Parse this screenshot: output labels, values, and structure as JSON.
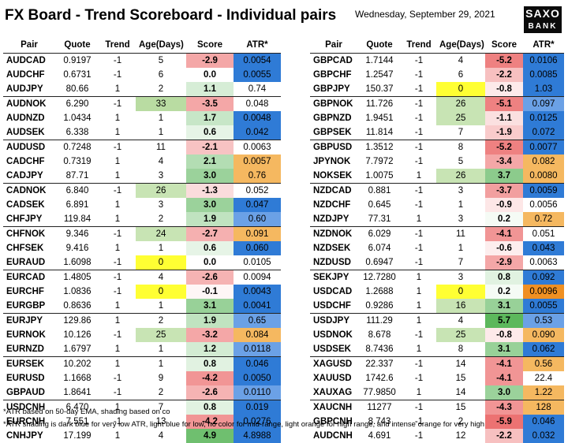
{
  "header": {
    "title": "FX Board - Trend Scoreboard - Individual pairs",
    "date": "Wednesday, September 29, 2021",
    "logo": {
      "line1": "SAXO",
      "line2": "BANK"
    }
  },
  "columns": [
    "Pair",
    "Quote",
    "Trend",
    "Age(Days)",
    "Score",
    "ATR*"
  ],
  "colors": {
    "atr_dark_blue": "#2f7bd6",
    "atr_light_blue": "#6ba1e6",
    "atr_light_orange": "#f5b860",
    "atr_intense_orange": "#f09022",
    "score_red": "#f08a8a",
    "score_light_red": "#f9cfcf",
    "score_green": "#8fcc8f",
    "score_light_green": "#d3ecd3",
    "age_highlight": "#ffff33",
    "age_green": "#b9dca2"
  },
  "left_table": [
    {
      "pair": "AUDCAD",
      "quote": "0.9197",
      "trend": "-1",
      "age": "5",
      "score": "-2.9",
      "atr": "0.0054",
      "sc": "#f4a7a7",
      "ac": "#2f7bd6"
    },
    {
      "pair": "AUDCHF",
      "quote": "0.6731",
      "trend": "-1",
      "age": "6",
      "score": "0.0",
      "atr": "0.0055",
      "sc": "#ffffff",
      "ac": "#2f7bd6"
    },
    {
      "pair": "AUDJPY",
      "quote": "80.66",
      "trend": "1",
      "age": "2",
      "score": "1.1",
      "atr": "0.74",
      "sc": "#d6edd6",
      "ac": "#ffffff",
      "sep": true
    },
    {
      "pair": "AUDNOK",
      "quote": "6.290",
      "trend": "-1",
      "age": "33",
      "score": "-3.5",
      "atr": "0.048",
      "sc": "#f4a7a7",
      "ac": "#ffffff",
      "agc": "#b9dca2"
    },
    {
      "pair": "AUDNZD",
      "quote": "1.0434",
      "trend": "1",
      "age": "1",
      "score": "1.7",
      "atr": "0.0048",
      "sc": "#c7e6c7",
      "ac": "#2f7bd6"
    },
    {
      "pair": "AUDSEK",
      "quote": "6.338",
      "trend": "1",
      "age": "1",
      "score": "0.6",
      "atr": "0.042",
      "sc": "#e6f4e6",
      "ac": "#2f7bd6",
      "sep": true
    },
    {
      "pair": "AUDUSD",
      "quote": "0.7248",
      "trend": "-1",
      "age": "11",
      "score": "-2.1",
      "atr": "0.0063",
      "sc": "#f7c3c3",
      "ac": "#ffffff"
    },
    {
      "pair": "CADCHF",
      "quote": "0.7319",
      "trend": "1",
      "age": "4",
      "score": "2.1",
      "atr": "0.0057",
      "sc": "#b3ddb3",
      "ac": "#f5b860"
    },
    {
      "pair": "CADJPY",
      "quote": "87.71",
      "trend": "1",
      "age": "3",
      "score": "3.0",
      "atr": "0.76",
      "sc": "#9bd29b",
      "ac": "#f5b860",
      "sep": true
    },
    {
      "pair": "CADNOK",
      "quote": "6.840",
      "trend": "-1",
      "age": "26",
      "score": "-1.3",
      "atr": "0.052",
      "sc": "#fadcdc",
      "ac": "#ffffff",
      "agc": "#c8e4b4"
    },
    {
      "pair": "CADSEK",
      "quote": "6.891",
      "trend": "1",
      "age": "3",
      "score": "3.0",
      "atr": "0.047",
      "sc": "#9bd29b",
      "ac": "#2f7bd6"
    },
    {
      "pair": "CHFJPY",
      "quote": "119.84",
      "trend": "1",
      "age": "2",
      "score": "1.9",
      "atr": "0.60",
      "sc": "#c0e3c0",
      "ac": "#6ba1e6",
      "sep": true
    },
    {
      "pair": "CHFNOK",
      "quote": "9.346",
      "trend": "-1",
      "age": "24",
      "score": "-2.7",
      "atr": "0.091",
      "sc": "#f5b0b0",
      "ac": "#f5b860",
      "agc": "#c8e4b4"
    },
    {
      "pair": "CHFSEK",
      "quote": "9.416",
      "trend": "1",
      "age": "1",
      "score": "0.6",
      "atr": "0.060",
      "sc": "#e6f4e6",
      "ac": "#2f7bd6"
    },
    {
      "pair": "EURAUD",
      "quote": "1.6098",
      "trend": "-1",
      "age": "0",
      "score": "0.0",
      "atr": "0.0105",
      "sc": "#ffffff",
      "ac": "#ffffff",
      "agc": "#ffff33",
      "sep": true
    },
    {
      "pair": "EURCAD",
      "quote": "1.4805",
      "trend": "-1",
      "age": "4",
      "score": "-2.6",
      "atr": "0.0094",
      "sc": "#f5b3b3",
      "ac": "#ffffff"
    },
    {
      "pair": "EURCHF",
      "quote": "1.0836",
      "trend": "-1",
      "age": "0",
      "score": "-0.1",
      "atr": "0.0043",
      "sc": "#fef6f6",
      "ac": "#2f7bd6",
      "agc": "#ffff33"
    },
    {
      "pair": "EURGBP",
      "quote": "0.8636",
      "trend": "1",
      "age": "1",
      "score": "3.1",
      "atr": "0.0041",
      "sc": "#98d198",
      "ac": "#2f7bd6",
      "sep": true
    },
    {
      "pair": "EURJPY",
      "quote": "129.86",
      "trend": "1",
      "age": "2",
      "score": "1.9",
      "atr": "0.65",
      "sc": "#c0e3c0",
      "ac": "#6ba1e6"
    },
    {
      "pair": "EURNOK",
      "quote": "10.126",
      "trend": "-1",
      "age": "25",
      "score": "-3.2",
      "atr": "0.084",
      "sc": "#f4a7a7",
      "ac": "#f5b860",
      "agc": "#c8e4b4"
    },
    {
      "pair": "EURNZD",
      "quote": "1.6797",
      "trend": "1",
      "age": "1",
      "score": "1.2",
      "atr": "0.0118",
      "sc": "#d3ecd3",
      "ac": "#6ba1e6",
      "sep": true
    },
    {
      "pair": "EURSEK",
      "quote": "10.202",
      "trend": "1",
      "age": "1",
      "score": "0.8",
      "atr": "0.046",
      "sc": "#e1f2e1",
      "ac": "#2f7bd6"
    },
    {
      "pair": "EURUSD",
      "quote": "1.1668",
      "trend": "-1",
      "age": "9",
      "score": "-4.2",
      "atr": "0.0050",
      "sc": "#f19595",
      "ac": "#2f7bd6"
    },
    {
      "pair": "GBPAUD",
      "quote": "1.8641",
      "trend": "-1",
      "age": "2",
      "score": "-2.6",
      "atr": "0.0110",
      "sc": "#f5b3b3",
      "ac": "#6ba1e6",
      "sep": true
    },
    {
      "pair": "USDCNH",
      "quote": "6.470",
      "trend": "1",
      "age": "7",
      "score": "0.8",
      "atr": "0.019",
      "sc": "#e1f2e1",
      "ac": "#2f7bd6"
    },
    {
      "pair": "EURCNH",
      "quote": "7.551",
      "trend": "-1",
      "age": "13",
      "score": "-4.2",
      "atr": "0.0276",
      "sc": "#f19595",
      "ac": "#2f7bd6"
    },
    {
      "pair": "CNHJPY",
      "quote": "17.199",
      "trend": "1",
      "age": "4",
      "score": "4.9",
      "atr": "4.8988",
      "sc": "#6fbf6f",
      "ac": "#2f7bd6"
    }
  ],
  "right_table": [
    {
      "pair": "GBPCAD",
      "quote": "1.7144",
      "trend": "-1",
      "age": "4",
      "score": "-5.2",
      "atr": "0.0106",
      "sc": "#ee8181",
      "ac": "#2f7bd6"
    },
    {
      "pair": "GBPCHF",
      "quote": "1.2547",
      "trend": "-1",
      "age": "6",
      "score": "-2.2",
      "atr": "0.0085",
      "sc": "#f7c0c0",
      "ac": "#2f7bd6"
    },
    {
      "pair": "GBPJPY",
      "quote": "150.37",
      "trend": "-1",
      "age": "0",
      "score": "-0.8",
      "atr": "1.03",
      "sc": "#fdeaea",
      "ac": "#2f7bd6",
      "agc": "#ffff33",
      "sep": true
    },
    {
      "pair": "GBPNOK",
      "quote": "11.726",
      "trend": "-1",
      "age": "26",
      "score": "-5.1",
      "atr": "0.097",
      "sc": "#ee8181",
      "ac": "#6ba1e6",
      "agc": "#c8e4b4"
    },
    {
      "pair": "GBPNZD",
      "quote": "1.9451",
      "trend": "-1",
      "age": "25",
      "score": "-1.1",
      "atr": "0.0125",
      "sc": "#fbe0e0",
      "ac": "#2f7bd6",
      "agc": "#c8e4b4"
    },
    {
      "pair": "GBPSEK",
      "quote": "11.814",
      "trend": "-1",
      "age": "7",
      "score": "-1.9",
      "atr": "0.072",
      "sc": "#f9cbcb",
      "ac": "#2f7bd6",
      "sep": true
    },
    {
      "pair": "GBPUSD",
      "quote": "1.3512",
      "trend": "-1",
      "age": "8",
      "score": "-5.2",
      "atr": "0.0077",
      "sc": "#ee8181",
      "ac": "#2f7bd6"
    },
    {
      "pair": "JPYNOK",
      "quote": "7.7972",
      "trend": "-1",
      "age": "5",
      "score": "-3.4",
      "atr": "0.082",
      "sc": "#f4a7a7",
      "ac": "#f5b860"
    },
    {
      "pair": "NOKSEK",
      "quote": "1.0075",
      "trend": "1",
      "age": "26",
      "score": "3.7",
      "atr": "0.0080",
      "sc": "#8ccb8c",
      "ac": "#f5b860",
      "agc": "#c8e4b4",
      "sep": true
    },
    {
      "pair": "NZDCAD",
      "quote": "0.881",
      "trend": "-1",
      "age": "3",
      "score": "-3.7",
      "atr": "0.0059",
      "sc": "#f29f9f",
      "ac": "#2f7bd6"
    },
    {
      "pair": "NZDCHF",
      "quote": "0.645",
      "trend": "-1",
      "age": "1",
      "score": "-0.9",
      "atr": "0.0056",
      "sc": "#fde7e7",
      "ac": "#ffffff"
    },
    {
      "pair": "NZDJPY",
      "quote": "77.31",
      "trend": "1",
      "age": "3",
      "score": "0.2",
      "atr": "0.72",
      "sc": "#f5fbf5",
      "ac": "#f5b860",
      "sep": true
    },
    {
      "pair": "NZDNOK",
      "quote": "6.029",
      "trend": "-1",
      "age": "11",
      "score": "-4.1",
      "atr": "0.051",
      "sc": "#f19595",
      "ac": "#ffffff"
    },
    {
      "pair": "NZDSEK",
      "quote": "6.074",
      "trend": "-1",
      "age": "1",
      "score": "-0.6",
      "atr": "0.043",
      "sc": "#fdeeee",
      "ac": "#2f7bd6"
    },
    {
      "pair": "NZDUSD",
      "quote": "0.6947",
      "trend": "-1",
      "age": "7",
      "score": "-2.9",
      "atr": "0.0063",
      "sc": "#f4a7a7",
      "ac": "#ffffff",
      "sep": true
    },
    {
      "pair": "SEKJPY",
      "quote": "12.7280",
      "trend": "1",
      "age": "3",
      "score": "0.8",
      "atr": "0.092",
      "sc": "#e1f2e1",
      "ac": "#2f7bd6"
    },
    {
      "pair": "USDCAD",
      "quote": "1.2688",
      "trend": "1",
      "age": "0",
      "score": "0.2",
      "atr": "0.0096",
      "sc": "#f5fbf5",
      "ac": "#f09022",
      "agc": "#ffff33"
    },
    {
      "pair": "USDCHF",
      "quote": "0.9286",
      "trend": "1",
      "age": "16",
      "score": "3.1",
      "atr": "0.0055",
      "sc": "#98d198",
      "ac": "#2f7bd6",
      "agc": "#c8e4b4",
      "sep": true
    },
    {
      "pair": "USDJPY",
      "quote": "111.29",
      "trend": "1",
      "age": "4",
      "score": "5.7",
      "atr": "0.53",
      "sc": "#5cb85c",
      "ac": "#6ba1e6"
    },
    {
      "pair": "USDNOK",
      "quote": "8.678",
      "trend": "-1",
      "age": "25",
      "score": "-0.8",
      "atr": "0.090",
      "sc": "#fdeaea",
      "ac": "#f5b860",
      "agc": "#c8e4b4"
    },
    {
      "pair": "USDSEK",
      "quote": "8.7436",
      "trend": "1",
      "age": "8",
      "score": "3.1",
      "atr": "0.062",
      "sc": "#98d198",
      "ac": "#2f7bd6",
      "sep": true
    },
    {
      "pair": "XAGUSD",
      "quote": "22.337",
      "trend": "-1",
      "age": "14",
      "score": "-4.1",
      "atr": "0.56",
      "sc": "#f19595",
      "ac": "#f5b860"
    },
    {
      "pair": "XAUUSD",
      "quote": "1742.6",
      "trend": "-1",
      "age": "15",
      "score": "-4.1",
      "atr": "22.4",
      "sc": "#f19595",
      "ac": "#ffffff"
    },
    {
      "pair": "XAUXAG",
      "quote": "77.9850",
      "trend": "1",
      "age": "14",
      "score": "3.0",
      "atr": "1.22",
      "sc": "#9bd29b",
      "ac": "#f5b860",
      "sep": true
    },
    {
      "pair": "XAUCNH",
      "quote": "11277",
      "trend": "-1",
      "age": "15",
      "score": "-4.3",
      "atr": "128",
      "sc": "#f19595",
      "ac": "#f5b860"
    },
    {
      "pair": "GBPCNH",
      "quote": "8.743",
      "trend": "-1",
      "age": "2",
      "score": "-5.9",
      "atr": "0.046",
      "sc": "#ec7272",
      "ac": "#2f7bd6"
    },
    {
      "pair": "AUDCNH",
      "quote": "4.691",
      "trend": "-1",
      "age": "12",
      "score": "-2.2",
      "atr": "0.032",
      "sc": "#f7c0c0",
      "ac": "#2f7bd6"
    }
  ],
  "footnotes": {
    "line1": "*ATR based on 50-day EMA, shading based on co",
    "line2": "*ATR shading is dark blue for very low ATR, light blue for low, no color for mid-range, light orange for high range, and intense orange for very high"
  }
}
